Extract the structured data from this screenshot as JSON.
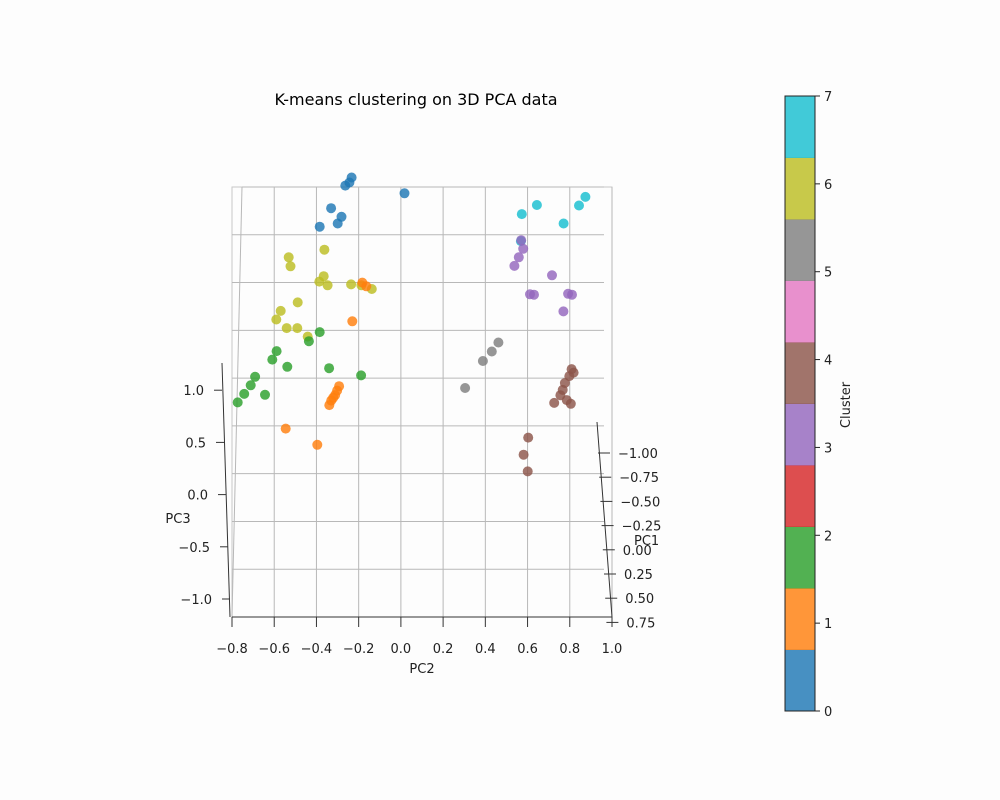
{
  "chart_data": {
    "type": "scatter",
    "title": "K-means clustering on 3D PCA data",
    "xlabel": "PC1",
    "ylabel": "PC2",
    "zlabel": "PC3",
    "x_ticks": [
      "−1.00",
      "−0.75",
      "−0.50",
      "−0.25",
      "0.00",
      "0.25",
      "0.50",
      "0.75"
    ],
    "y_ticks": [
      "−0.8",
      "−0.6",
      "−0.4",
      "−0.2",
      "0.0",
      "0.2",
      "0.4",
      "0.6",
      "0.8",
      "1.0"
    ],
    "z_ticks": [
      "−1.0",
      "−0.5",
      "0.0",
      "0.5",
      "1.0"
    ],
    "grid": true,
    "colorbar": {
      "label": "Cluster",
      "ticks": [
        "0",
        "1",
        "2",
        "3",
        "4",
        "5",
        "6",
        "7"
      ],
      "range": [
        0,
        7
      ],
      "colors": [
        "#1f77b4",
        "#ff7f0e",
        "#2ca02c",
        "#d62728",
        "#9467bd",
        "#8c564b",
        "#e377c2",
        "#7f7f7f",
        "#bcbd22",
        "#17becf"
      ]
    },
    "clusters": [
      {
        "cluster": 0,
        "color": "#1f77b4",
        "points": [
          [
            -0.25,
            -0.25,
            1.55
          ],
          [
            -0.24,
            -0.26,
            1.52
          ],
          [
            -0.26,
            -0.28,
            1.5
          ],
          [
            -0.3,
            0.0,
            1.45
          ],
          [
            -0.55,
            -0.32,
            1.25
          ],
          [
            -0.4,
            -0.3,
            1.3
          ],
          [
            -0.45,
            -0.35,
            1.35
          ],
          [
            -0.2,
            -0.4,
            1.25
          ]
        ]
      },
      {
        "cluster": 1,
        "color": "#ff7f0e",
        "points": [
          [
            -0.3,
            -0.2,
            0.9
          ],
          [
            -0.25,
            -0.18,
            0.88
          ],
          [
            -0.5,
            -0.25,
            0.65
          ],
          [
            0.4,
            -0.3,
            0.3
          ],
          [
            0.35,
            -0.31,
            0.27
          ],
          [
            0.3,
            -0.32,
            0.24
          ],
          [
            0.25,
            -0.33,
            0.22
          ],
          [
            0.2,
            -0.34,
            0.2
          ],
          [
            0.15,
            -0.35,
            0.17
          ],
          [
            0.6,
            -0.55,
            0.05
          ],
          [
            0.6,
            -0.4,
            -0.05
          ]
        ]
      },
      {
        "cluster": 2,
        "color": "#2ca02c",
        "points": [
          [
            -0.2,
            -0.4,
            0.6
          ],
          [
            -0.1,
            -0.45,
            0.55
          ],
          [
            0.1,
            -0.6,
            0.5
          ],
          [
            0.15,
            -0.62,
            0.45
          ],
          [
            0.05,
            -0.55,
            0.4
          ],
          [
            0.25,
            -0.7,
            0.35
          ],
          [
            0.3,
            -0.72,
            0.3
          ],
          [
            0.35,
            -0.75,
            0.25
          ],
          [
            0.4,
            -0.78,
            0.2
          ],
          [
            0.45,
            -0.65,
            0.25
          ],
          [
            0.2,
            -0.35,
            0.4
          ],
          [
            0.1,
            -0.2,
            0.35
          ]
        ]
      },
      {
        "cluster": 3,
        "color": "#9467bd",
        "points": [
          [
            -0.5,
            0.55,
            1.15
          ],
          [
            -0.45,
            0.56,
            1.1
          ],
          [
            -0.4,
            0.54,
            1.05
          ],
          [
            -0.35,
            0.52,
            1.0
          ],
          [
            -0.2,
            0.7,
            0.95
          ],
          [
            0.1,
            0.6,
            0.85
          ],
          [
            0.15,
            0.62,
            0.85
          ],
          [
            0.05,
            0.78,
            0.85
          ],
          [
            0.15,
            0.8,
            0.85
          ],
          [
            0.2,
            0.76,
            0.75
          ]
        ]
      },
      {
        "cluster": 4,
        "color": "#8c564b",
        "points": [
          [
            0.3,
            0.8,
            0.4
          ],
          [
            0.33,
            0.81,
            0.38
          ],
          [
            0.36,
            0.79,
            0.36
          ],
          [
            0.4,
            0.77,
            0.32
          ],
          [
            0.45,
            0.76,
            0.28
          ],
          [
            0.5,
            0.75,
            0.25
          ],
          [
            0.45,
            0.72,
            0.2
          ],
          [
            0.5,
            0.78,
            0.22
          ],
          [
            0.55,
            0.8,
            0.2
          ],
          [
            0.7,
            0.6,
            0.0
          ],
          [
            0.8,
            0.58,
            -0.1
          ],
          [
            0.85,
            0.6,
            -0.2
          ]
        ]
      },
      {
        "cluster": 5,
        "color": "#7f7f7f",
        "points": [
          [
            0.05,
            0.45,
            0.55
          ],
          [
            0.15,
            0.42,
            0.5
          ],
          [
            0.3,
            0.38,
            0.45
          ],
          [
            0.6,
            0.3,
            0.3
          ]
        ]
      },
      {
        "cluster": 6,
        "color": "#bcbd22",
        "points": [
          [
            -0.4,
            -0.55,
            1.05
          ],
          [
            -0.35,
            -0.38,
            1.1
          ],
          [
            -0.3,
            -0.54,
            1.0
          ],
          [
            -0.1,
            -0.38,
            0.95
          ],
          [
            -0.05,
            -0.4,
            0.92
          ],
          [
            0.0,
            -0.36,
            0.9
          ],
          [
            0.0,
            -0.2,
            0.9
          ],
          [
            0.05,
            -0.15,
            0.88
          ],
          [
            0.1,
            -0.5,
            0.8
          ],
          [
            0.15,
            -0.58,
            0.75
          ],
          [
            0.2,
            -0.6,
            0.7
          ],
          [
            0.25,
            -0.55,
            0.65
          ],
          [
            0.25,
            -0.5,
            0.65
          ],
          [
            0.3,
            -0.45,
            0.6
          ],
          [
            -0.1,
            -0.25,
            0.9
          ]
        ]
      },
      {
        "cluster": 7,
        "color": "#17becf",
        "points": [
          [
            -0.7,
            0.55,
            1.3
          ],
          [
            -0.8,
            0.62,
            1.35
          ],
          [
            -0.75,
            0.82,
            1.35
          ],
          [
            -0.8,
            0.85,
            1.4
          ],
          [
            -0.55,
            0.75,
            1.25
          ],
          [
            -0.4,
            0.55,
            1.15
          ]
        ]
      }
    ]
  }
}
